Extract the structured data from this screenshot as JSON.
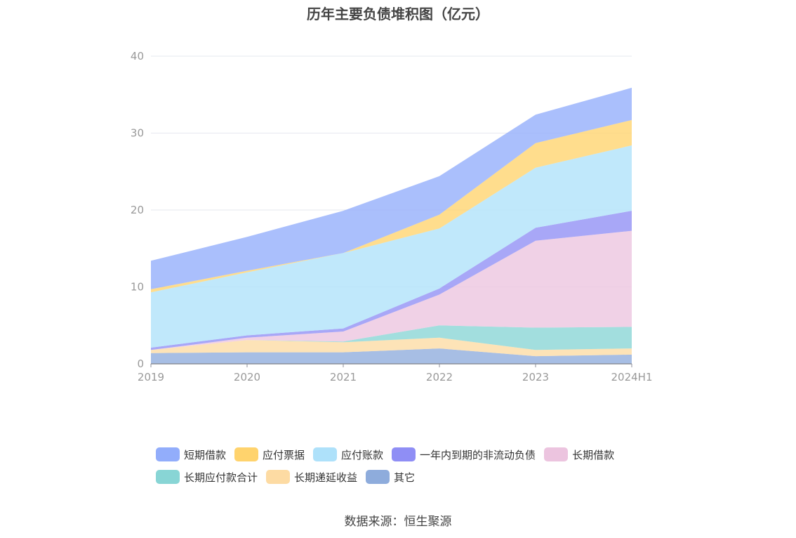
{
  "chart_data": {
    "type": "area",
    "stacked": true,
    "title": "历年主要负债堆积图（亿元）",
    "categories": [
      "2019",
      "2020",
      "2021",
      "2022",
      "2023",
      "2024H1"
    ],
    "y_ticks": [
      "0",
      "10",
      "20",
      "30",
      "40"
    ],
    "ylim": [
      0,
      40
    ],
    "grid": true,
    "legend_position": "bottom",
    "series": [
      {
        "name": "其它",
        "color": "#8eacdc",
        "values": [
          1.4,
          1.5,
          1.5,
          2.0,
          1.0,
          1.2
        ]
      },
      {
        "name": "长期递延收益",
        "color": "#fddba3",
        "values": [
          0.4,
          1.6,
          1.3,
          1.4,
          0.8,
          0.8
        ]
      },
      {
        "name": "长期应付款合计",
        "color": "#88d5d5",
        "values": [
          0.0,
          0.0,
          0.1,
          1.6,
          2.9,
          2.8
        ]
      },
      {
        "name": "长期借款",
        "color": "#ecc4df",
        "values": [
          0.0,
          0.3,
          1.3,
          4.0,
          11.3,
          12.5
        ]
      },
      {
        "name": "一年内到期的非流动负债",
        "color": "#8f8ef5",
        "values": [
          0.3,
          0.3,
          0.4,
          0.8,
          1.7,
          2.6
        ]
      },
      {
        "name": "应付账款",
        "color": "#aee1fa",
        "values": [
          7.2,
          8.2,
          9.8,
          7.8,
          7.8,
          8.5
        ]
      },
      {
        "name": "应付票据",
        "color": "#ffd36d",
        "values": [
          0.4,
          0.2,
          0.0,
          1.8,
          3.2,
          3.3
        ]
      },
      {
        "name": "短期借款",
        "color": "#92adfb",
        "values": [
          3.7,
          4.4,
          5.5,
          5.0,
          3.7,
          4.2
        ]
      }
    ],
    "legend_order": [
      "短期借款",
      "应付票据",
      "应付账款",
      "一年内到期的非流动负债",
      "长期借款",
      "长期应付款合计",
      "长期递延收益",
      "其它"
    ]
  },
  "source_text": "数据来源：恒生聚源"
}
